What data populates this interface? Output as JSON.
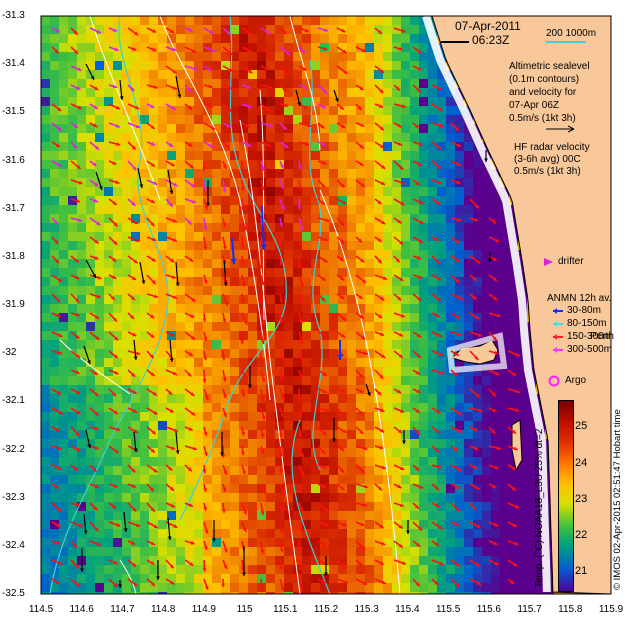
{
  "header": {
    "date": "07-Apr-2011",
    "time": "06:23Z",
    "scale_label": "200  1000m"
  },
  "legend": {
    "altimetric": [
      "Altimetric sealevel",
      "(0.1m contours)",
      "and velocity for",
      "07-Apr 06Z",
      "0.5m/s (1kt 3h)"
    ],
    "hf_radar": [
      "HF radar velocity",
      "(3-6h avg) 00C",
      "0.5m/s (1kt 3h)"
    ],
    "drifter": "drifter",
    "anmn": {
      "title": "ANMN 12h av.",
      "items": [
        {
          "label": "30-80m",
          "color": "#1030ff"
        },
        {
          "label": "80-150m",
          "color": "#40e0e0"
        },
        {
          "label": "150-300m",
          "color": "#ff2020"
        },
        {
          "label": "300-500m",
          "color": "#ff30ff"
        }
      ]
    },
    "argo": "Argo",
    "perth": "Perth"
  },
  "colorbar": {
    "label": "Temp. (°C) NOAA18_L3U 25% dt=2",
    "ticks": [
      "25",
      "24",
      "23",
      "22",
      "21"
    ]
  },
  "credit": "© IMOS 02-Apr-2015 02:51:47 Hobart time",
  "axes": {
    "y_ticks": [
      "-31.3",
      "-31.4",
      "-31.5",
      "-31.6",
      "-31.7",
      "-31.8",
      "-31.9",
      "-32",
      "-32.1",
      "-32.2",
      "-32.3",
      "-32.4",
      "-32.5"
    ],
    "x_ticks": [
      "114.5",
      "114.6",
      "114.7",
      "114.8",
      "114.9",
      "115",
      "115.1",
      "115.2",
      "115.3",
      "115.4",
      "115.5",
      "115.6",
      "115.7",
      "115.8",
      "115.9"
    ]
  },
  "colors": {
    "land": "#f9c89a",
    "coast_white": "#ffffff",
    "isobath": "#40d0d0",
    "arrow_red": "#ff1010",
    "arrow_magenta": "#e020e0",
    "arrow_blue": "#1030ff",
    "arrow_black": "#000000",
    "argo": "#ff20ff"
  }
}
